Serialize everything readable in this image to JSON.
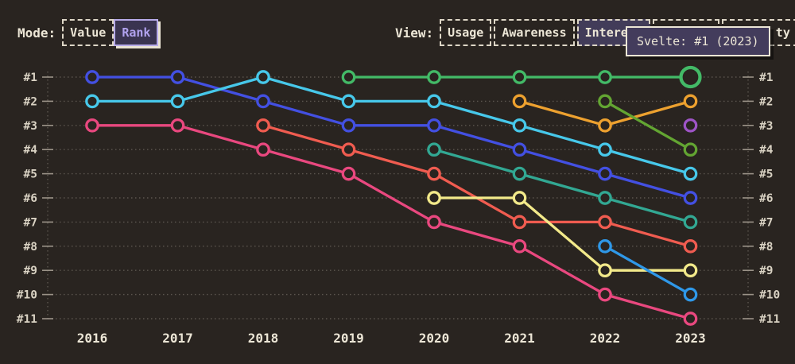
{
  "mode_row": {
    "label": "Mode:",
    "options": [
      {
        "label": "Value",
        "selected": false
      },
      {
        "label": "Rank",
        "selected": true
      }
    ]
  },
  "view_row": {
    "label": "View:",
    "options": [
      {
        "label": "Usage",
        "selected": false
      },
      {
        "label": "Awareness",
        "selected": false
      },
      {
        "label": "Interest",
        "selected": true
      },
      {
        "label": "",
        "selected": false,
        "partially_obscured": true
      },
      {
        "label": "ty",
        "selected": false,
        "partially_obscured": true
      }
    ]
  },
  "tooltip": {
    "text": "Svelte: #1 (2023)"
  },
  "colors": {
    "background": "#292420",
    "text_cream": "#ece6d6",
    "axis_label": "#d9d2c3",
    "gridline": "#5b554e",
    "tick": "#9b9388",
    "selected_purple_text": "#b1a2ee",
    "selected_purple_border": "#b7abe9",
    "tooltip_bg": "#433c5c"
  },
  "chart_data": {
    "type": "line",
    "subtype": "bump-rank",
    "title": "",
    "x": [
      2016,
      2017,
      2018,
      2019,
      2020,
      2021,
      2022,
      2023
    ],
    "y_tick_labels": [
      "#1",
      "#2",
      "#3",
      "#4",
      "#5",
      "#6",
      "#7",
      "#8",
      "#9",
      "#10",
      "#11"
    ],
    "y_inverted": true,
    "grid": "dotted-horizontal",
    "legend": "none (hover tooltip only)",
    "series": [
      {
        "name": "series-blue",
        "color": "#4350e2",
        "ranks": [
          1,
          1,
          2,
          3,
          3,
          4,
          5,
          6
        ]
      },
      {
        "name": "series-cyan",
        "color": "#47c8ea",
        "ranks": [
          2,
          2,
          1,
          2,
          2,
          3,
          4,
          5
        ]
      },
      {
        "name": "series-pink",
        "color": "#e9487f",
        "ranks": [
          3,
          3,
          4,
          5,
          7,
          8,
          10,
          11
        ]
      },
      {
        "name": "series-red",
        "color": "#f05c50",
        "ranks": [
          null,
          null,
          3,
          4,
          5,
          7,
          7,
          8
        ]
      },
      {
        "name": "Svelte",
        "color": "#43ba67",
        "ranks": [
          null,
          null,
          null,
          1,
          1,
          1,
          1,
          1
        ],
        "emphasis_x": 2023
      },
      {
        "name": "series-teal",
        "color": "#32a893",
        "ranks": [
          null,
          null,
          null,
          null,
          4,
          5,
          6,
          7
        ]
      },
      {
        "name": "series-yellow",
        "color": "#f2e98a",
        "ranks": [
          null,
          null,
          null,
          null,
          6,
          6,
          9,
          9
        ]
      },
      {
        "name": "series-orange",
        "color": "#eda12f",
        "ranks": [
          null,
          null,
          null,
          null,
          null,
          2,
          3,
          2
        ]
      },
      {
        "name": "series-green",
        "color": "#63a532",
        "ranks": [
          null,
          null,
          null,
          null,
          null,
          null,
          2,
          4
        ]
      },
      {
        "name": "series-light-blue",
        "color": "#2f98e8",
        "ranks": [
          null,
          null,
          null,
          null,
          null,
          null,
          8,
          10
        ]
      },
      {
        "name": "series-purple",
        "color": "#9e54c6",
        "ranks": [
          null,
          null,
          null,
          null,
          null,
          null,
          null,
          3
        ]
      }
    ]
  }
}
